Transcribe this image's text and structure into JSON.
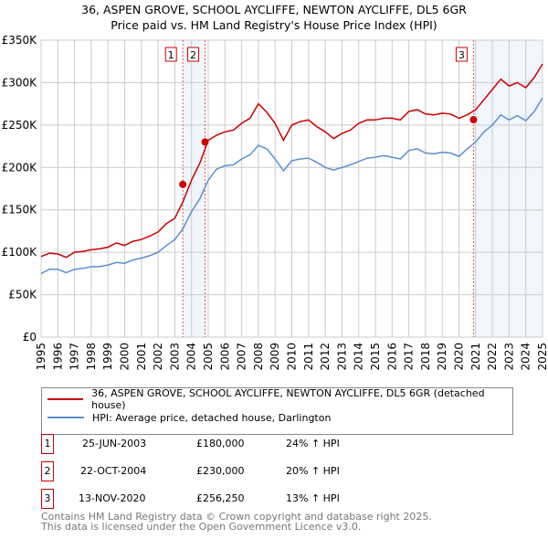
{
  "chart_data": {
    "type": "line",
    "title": "36, ASPEN GROVE, SCHOOL AYCLIFFE, NEWTON AYCLIFFE, DL5 6GR",
    "subtitle": "Price paid vs. HM Land Registry's House Price Index (HPI)",
    "xlabel": "",
    "ylabel": "",
    "xlim": [
      1995,
      2025
    ],
    "ylim": [
      0,
      350000
    ],
    "x_ticks": [
      "1995",
      "1996",
      "1997",
      "1998",
      "1999",
      "2000",
      "2001",
      "2002",
      "2003",
      "2004",
      "2005",
      "2006",
      "2007",
      "2008",
      "2009",
      "2010",
      "2011",
      "2012",
      "2013",
      "2014",
      "2015",
      "2016",
      "2017",
      "2018",
      "2019",
      "2020",
      "2021",
      "2022",
      "2023",
      "2024",
      "2025"
    ],
    "y_ticks": [
      {
        "value": 0,
        "label": "£0"
      },
      {
        "value": 50000,
        "label": "£50K"
      },
      {
        "value": 100000,
        "label": "£100K"
      },
      {
        "value": 150000,
        "label": "£150K"
      },
      {
        "value": 200000,
        "label": "£200K"
      },
      {
        "value": 250000,
        "label": "£250K"
      },
      {
        "value": 300000,
        "label": "£300K"
      },
      {
        "value": 350000,
        "label": "£350K"
      }
    ],
    "grid": true,
    "x": [
      1995,
      1995.5,
      1996,
      1996.5,
      1997,
      1997.5,
      1998,
      1998.5,
      1999,
      1999.5,
      2000,
      2000.5,
      2001,
      2001.5,
      2002,
      2002.5,
      2003,
      2003.5,
      2004,
      2004.5,
      2005,
      2005.5,
      2006,
      2006.5,
      2007,
      2007.5,
      2008,
      2008.5,
      2009,
      2009.5,
      2010,
      2010.5,
      2011,
      2011.5,
      2012,
      2012.5,
      2013,
      2013.5,
      2014,
      2014.5,
      2015,
      2015.5,
      2016,
      2016.5,
      2017,
      2017.5,
      2018,
      2018.5,
      2019,
      2019.5,
      2020,
      2020.5,
      2021,
      2021.5,
      2022,
      2022.5,
      2023,
      2023.5,
      2024,
      2024.5,
      2025
    ],
    "series": [
      {
        "name": "36, ASPEN GROVE, SCHOOL AYCLIFFE, NEWTON AYCLIFFE, DL5 6GR (detached house)",
        "color": "#cc0000",
        "values": [
          95000,
          99000,
          98000,
          94000,
          100000,
          101000,
          103000,
          104000,
          106000,
          111000,
          108000,
          113000,
          115000,
          119000,
          124000,
          134000,
          140000,
          160000,
          185000,
          205000,
          232000,
          238000,
          242000,
          244000,
          252000,
          258000,
          275000,
          265000,
          252000,
          232000,
          250000,
          254000,
          256000,
          248000,
          242000,
          234000,
          240000,
          244000,
          252000,
          256000,
          256000,
          258000,
          258000,
          256000,
          266000,
          268000,
          263000,
          262000,
          264000,
          263000,
          258000,
          262000,
          268000,
          280000,
          292000,
          304000,
          296000,
          300000,
          294000,
          306000,
          322000
        ]
      },
      {
        "name": "HPI: Average price, detached house, Darlington",
        "color": "#5b8fd0",
        "values": [
          75000,
          80000,
          80000,
          76000,
          80000,
          81000,
          83000,
          83000,
          85000,
          88000,
          87000,
          91000,
          93000,
          96000,
          100000,
          108000,
          115000,
          128000,
          148000,
          163000,
          185000,
          198000,
          202000,
          203000,
          210000,
          215000,
          226000,
          222000,
          210000,
          196000,
          208000,
          210000,
          211000,
          206000,
          200000,
          197000,
          200000,
          203000,
          207000,
          211000,
          212000,
          214000,
          212000,
          210000,
          220000,
          222000,
          217000,
          216000,
          218000,
          217000,
          213000,
          222000,
          230000,
          242000,
          250000,
          262000,
          256000,
          261000,
          255000,
          266000,
          282000
        ]
      }
    ],
    "sales": [
      {
        "num": "1",
        "x": 2003.48,
        "price": 180000,
        "date": "25-JUN-2003",
        "price_label": "£180,000",
        "hpi": "24% ↑ HPI"
      },
      {
        "num": "2",
        "x": 2004.81,
        "price": 230000,
        "date": "22-OCT-2004",
        "price_label": "£230,000",
        "hpi": "20% ↑ HPI"
      },
      {
        "num": "3",
        "x": 2020.87,
        "price": 256250,
        "date": "13-NOV-2020",
        "price_label": "£256,250",
        "hpi": "13% ↑ HPI"
      }
    ],
    "shaded": [
      [
        2003.48,
        2004.81
      ],
      [
        2020.87,
        2025
      ]
    ],
    "legend": "bottom"
  },
  "footer": {
    "line1": "Contains HM Land Registry data © Crown copyright and database right 2025.",
    "line2": "This data is licensed under the Open Government Licence v3.0."
  }
}
